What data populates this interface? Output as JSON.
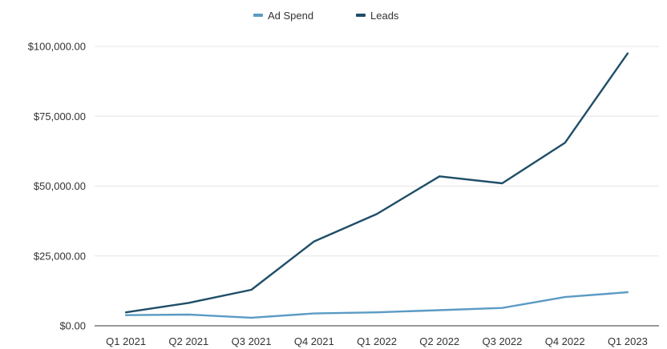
{
  "chart_data": {
    "type": "line",
    "categories": [
      "Q1 2021",
      "Q2 2021",
      "Q3 2021",
      "Q4 2021",
      "Q1 2022",
      "Q2 2022",
      "Q3 2022",
      "Q4 2022",
      "Q1 2023"
    ],
    "series": [
      {
        "name": "Ad Spend",
        "color": "#5b9bc4",
        "values": [
          3800,
          4000,
          2900,
          4400,
          4800,
          5600,
          6400,
          10300,
          12000
        ]
      },
      {
        "name": "Leads",
        "color": "#1f4e68",
        "values": [
          4800,
          8200,
          12900,
          30200,
          40000,
          53500,
          51000,
          65500,
          97500
        ]
      }
    ],
    "y_ticks": [
      "$0.00",
      "$25,000.00",
      "$50,000.00",
      "$75,000.00",
      "$100,000.00"
    ],
    "y_tick_values": [
      0,
      25000,
      50000,
      75000,
      100000
    ],
    "ylim": [
      0,
      100000
    ],
    "legend_position": "top",
    "grid": true
  }
}
